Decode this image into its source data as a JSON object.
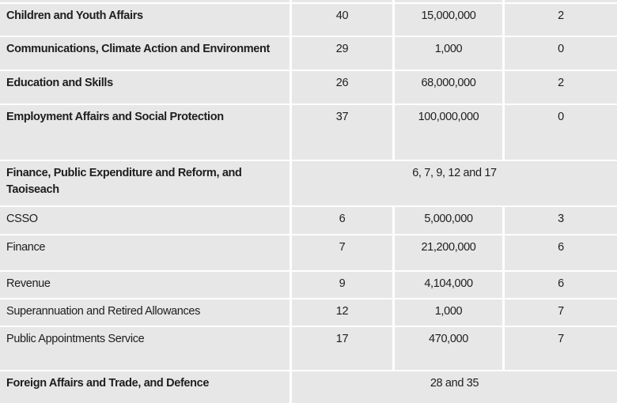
{
  "table": {
    "rows": [
      {
        "name": "",
        "vote": "",
        "amount": "",
        "count": "",
        "bold": true
      },
      {
        "name": "Children and Youth Affairs",
        "vote": "40",
        "amount": "15,000,000",
        "count": "2",
        "bold": true
      },
      {
        "name": "Communications, Climate Action and Environment",
        "vote": "29",
        "amount": "1,000",
        "count": "0",
        "bold": true
      },
      {
        "name": "Education and Skills",
        "vote": "26",
        "amount": "68,000,000",
        "count": "2",
        "bold": true
      },
      {
        "name": "Employment Affairs and Social Protection",
        "vote": "37",
        "amount": "100,000,000",
        "count": "0",
        "bold": true
      },
      {
        "name": "Finance, Public Expenditure and Reform, and Taoiseach",
        "merged": "6, 7, 9, 12 and 17",
        "bold": true
      },
      {
        "name": "CSSO",
        "vote": "6",
        "amount": "5,000,000",
        "count": "3",
        "bold": false
      },
      {
        "name": "Finance",
        "vote": "7",
        "amount": "21,200,000",
        "count": "6",
        "bold": false
      },
      {
        "name": "Revenue",
        "vote": "9",
        "amount": "4,104,000",
        "count": "6",
        "bold": false
      },
      {
        "name": "Superannuation and Retired Allowances",
        "vote": "12",
        "amount": "1,000",
        "count": "7",
        "bold": false
      },
      {
        "name": "Public Appointments Service",
        "vote": "17",
        "amount": "470,000",
        "count": "7",
        "bold": false
      },
      {
        "name": "Foreign Affairs and Trade, and Defence",
        "merged": "28 and 35",
        "bold": true
      }
    ]
  }
}
